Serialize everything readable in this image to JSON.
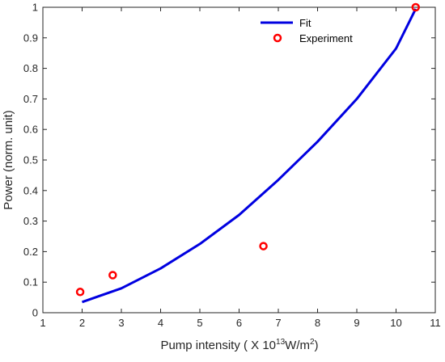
{
  "chart_data": {
    "type": "scatter",
    "xlabel": {
      "prefix": "Pump intensity ( X 10",
      "exponent": "13",
      "unit": "W/m",
      "unit_sup": "2",
      "suffix": ")"
    },
    "ylabel": "Power (norm. unit)",
    "xlim": [
      1,
      11
    ],
    "ylim": [
      0,
      1
    ],
    "x_ticks": [
      "1",
      "2",
      "3",
      "4",
      "5",
      "6",
      "7",
      "8",
      "9",
      "10",
      "11"
    ],
    "y_ticks": [
      "0",
      "0.1",
      "0.2",
      "0.3",
      "0.4",
      "0.5",
      "0.6",
      "0.7",
      "0.8",
      "0.9",
      "1"
    ],
    "grid": false,
    "legend_position": "top-right",
    "series": [
      {
        "name": "Fit",
        "kind": "line",
        "color": "#0000e0",
        "x": [
          2.0,
          3.0,
          4.0,
          5.0,
          6.0,
          7.0,
          8.0,
          9.0,
          10.0,
          10.5
        ],
        "y": [
          0.035,
          0.08,
          0.145,
          0.225,
          0.32,
          0.435,
          0.56,
          0.7,
          0.865,
          0.995
        ]
      },
      {
        "name": "Experiment",
        "kind": "marker",
        "color": "#ff0000",
        "x": [
          1.95,
          2.78,
          6.62,
          10.5
        ],
        "y": [
          0.068,
          0.123,
          0.218,
          1.0
        ]
      }
    ]
  }
}
